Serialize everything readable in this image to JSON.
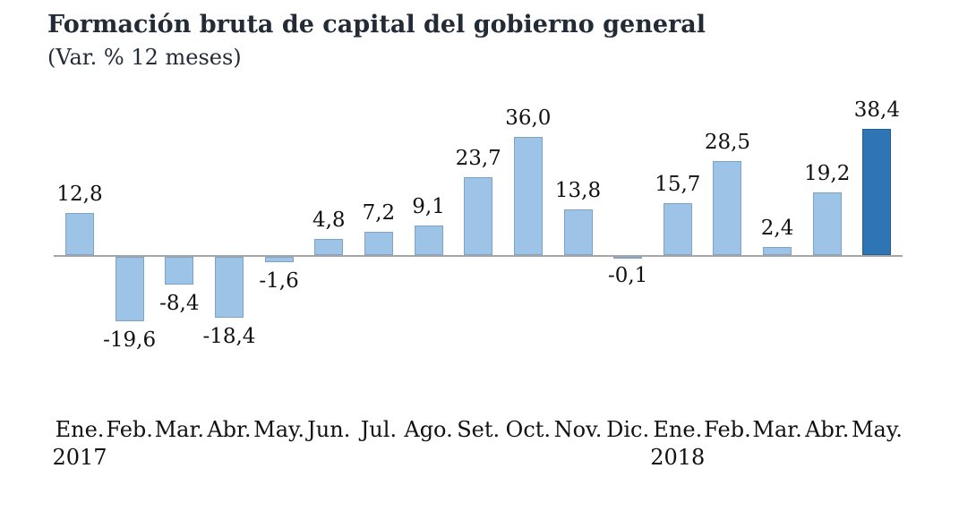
{
  "title": "Formación bruta de capital del gobierno general",
  "subtitle": "(Var. % 12 meses)",
  "chart_data": {
    "type": "bar",
    "title": "Formación bruta de capital del gobierno general",
    "subtitle": "(Var. % 12 meses)",
    "xlabel": "",
    "ylabel": "Var. % 12 meses",
    "ylim": [
      -25,
      42
    ],
    "grid": false,
    "legend": false,
    "categories": [
      "Ene.",
      "Feb.",
      "Mar.",
      "Abr.",
      "May.",
      "Jun.",
      "Jul.",
      "Ago.",
      "Set.",
      "Oct.",
      "Nov.",
      "Dic.",
      "Ene.",
      "Feb.",
      "Mar.",
      "Abr.",
      "May."
    ],
    "values": [
      12.8,
      -19.6,
      -8.4,
      -18.4,
      -1.6,
      4.8,
      7.2,
      9.1,
      23.7,
      36.0,
      13.8,
      -0.1,
      15.7,
      28.5,
      2.4,
      19.2,
      38.4
    ],
    "value_labels": [
      "12,8",
      "-19,6",
      "-8,4",
      "-18,4",
      "-1,6",
      "4,8",
      "7,2",
      "9,1",
      "23,7",
      "36,0",
      "13,8",
      "-0,1",
      "15,7",
      "28,5",
      "2,4",
      "19,2",
      "38,4"
    ],
    "year_markers": [
      {
        "index": 0,
        "label": "2017"
      },
      {
        "index": 12,
        "label": "2018"
      }
    ],
    "highlight_index": 16,
    "colors": {
      "bar_fill": "#9DC3E6",
      "bar_border": "#7FA3C6",
      "highlight_fill": "#2E75B6",
      "highlight_border": "#245E94",
      "axis_line": "#A6A6A6",
      "text": "#111111",
      "title_text": "#232B36"
    }
  }
}
